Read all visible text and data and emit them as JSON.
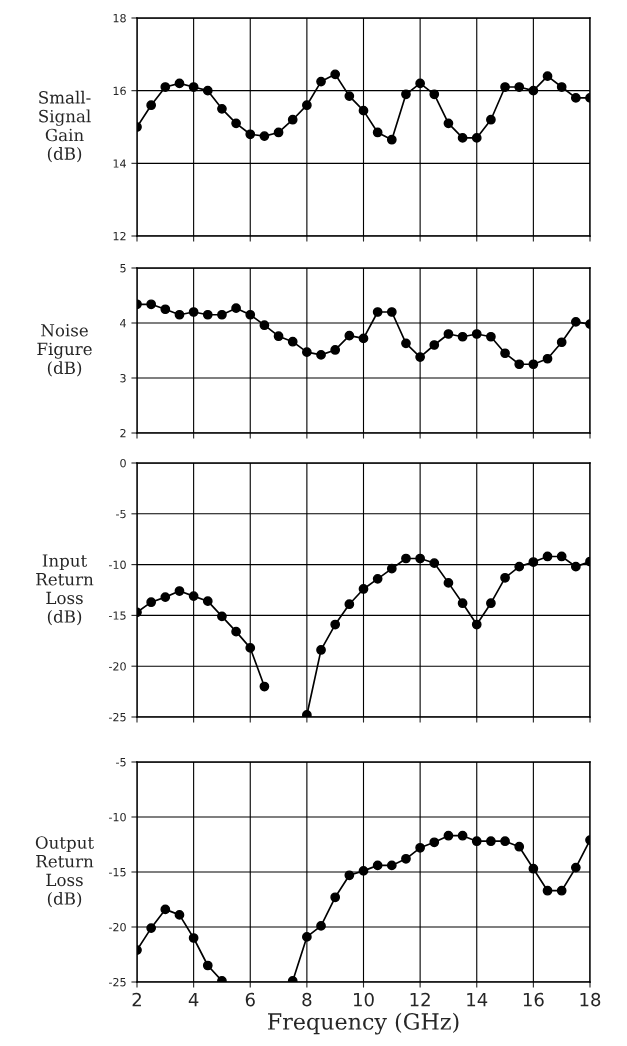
{
  "chart_data": [
    {
      "type": "line",
      "ylabel": "Small-\nSignal\nGain\n(dB)",
      "x": [
        2,
        2.5,
        3,
        3.5,
        4,
        4.5,
        5,
        5.5,
        6,
        6.5,
        7,
        7.5,
        8,
        8.5,
        9,
        9.5,
        10,
        10.5,
        11,
        11.5,
        12,
        12.5,
        13,
        13.5,
        14,
        14.5,
        15,
        15.5,
        16,
        16.5,
        17,
        17.5,
        18
      ],
      "series": [
        {
          "color": "#000000",
          "values": [
            15.0,
            15.6,
            16.1,
            16.2,
            16.1,
            16.0,
            15.5,
            15.1,
            14.8,
            14.75,
            14.85,
            15.2,
            15.6,
            16.25,
            16.45,
            15.85,
            15.45,
            14.85,
            14.65,
            15.9,
            16.2,
            15.9,
            15.1,
            14.7,
            14.7,
            15.2,
            16.1,
            16.1,
            16.0,
            16.4,
            16.1,
            15.8,
            15.8
          ]
        }
      ],
      "xlim": [
        2,
        18
      ],
      "xticks": [
        2,
        4,
        6,
        8,
        10,
        12,
        14,
        16,
        18
      ],
      "ylim": [
        12,
        18
      ],
      "yticks": [
        12,
        14,
        16,
        18
      ],
      "grid": true,
      "marker": "circle",
      "line_style": "solid",
      "tick_labels": "y"
    },
    {
      "type": "line",
      "ylabel": "Noise\nFigure\n(dB)",
      "x": [
        2,
        2.5,
        3,
        3.5,
        4,
        4.5,
        5,
        5.5,
        6,
        6.5,
        7,
        7.5,
        8,
        8.5,
        9,
        9.5,
        10,
        10.5,
        11,
        11.5,
        12,
        12.5,
        13,
        13.5,
        14,
        14.5,
        15,
        15.5,
        16,
        16.5,
        17,
        17.5,
        18
      ],
      "series": [
        {
          "color": "#000000",
          "values": [
            4.34,
            4.34,
            4.25,
            4.15,
            4.2,
            4.15,
            4.15,
            4.27,
            4.15,
            3.96,
            3.76,
            3.66,
            3.47,
            3.42,
            3.51,
            3.77,
            3.72,
            4.2,
            4.2,
            3.63,
            3.38,
            3.6,
            3.8,
            3.75,
            3.8,
            3.75,
            3.45,
            3.25,
            3.25,
            3.35,
            3.65,
            4.02,
            3.98
          ]
        }
      ],
      "xlim": [
        2,
        18
      ],
      "xticks": [
        2,
        4,
        6,
        8,
        10,
        12,
        14,
        16,
        18
      ],
      "ylim": [
        2,
        5
      ],
      "yticks": [
        2,
        3,
        4,
        5
      ],
      "grid": true,
      "marker": "circle",
      "line_style": "solid",
      "tick_labels": "y"
    },
    {
      "type": "line",
      "ylabel": "Input\nReturn\nLoss\n(dB)",
      "x": [
        2,
        2.5,
        3,
        3.5,
        4,
        4.5,
        5,
        5.5,
        6,
        6.5,
        7,
        7.5,
        8,
        8.5,
        9,
        9.5,
        10,
        10.5,
        11,
        11.5,
        12,
        12.5,
        13,
        13.5,
        14,
        14.5,
        15,
        15.5,
        16,
        16.5,
        17,
        17.5,
        18
      ],
      "series": [
        {
          "color": "#000000",
          "values": [
            -14.7,
            -13.7,
            -13.2,
            -12.6,
            -13.1,
            -13.6,
            -15.1,
            -16.6,
            -18.2,
            -22.0,
            null,
            null,
            -24.8,
            -18.4,
            -15.9,
            -13.9,
            -12.4,
            -11.4,
            -10.4,
            -9.4,
            -9.4,
            -9.85,
            -11.8,
            -13.8,
            -15.9,
            -13.8,
            -11.3,
            -10.2,
            -9.75,
            -9.2,
            -9.2,
            -10.2,
            -9.7
          ]
        }
      ],
      "xlim": [
        2,
        18
      ],
      "xticks": [
        2,
        4,
        6,
        8,
        10,
        12,
        14,
        16,
        18
      ],
      "ylim": [
        -25,
        0
      ],
      "yticks": [
        -25,
        -20,
        -15,
        -10,
        -5,
        0
      ],
      "grid": true,
      "marker": "circle",
      "line_style": "solid",
      "tick_labels": "y"
    },
    {
      "type": "line",
      "ylabel": "Output\nReturn\nLoss\n(dB)",
      "xlabel": "Frequency (GHz)",
      "x": [
        2,
        2.5,
        3,
        3.5,
        4,
        4.5,
        5,
        5.5,
        6,
        6.5,
        7,
        7.5,
        8,
        8.5,
        9,
        9.5,
        10,
        10.5,
        11,
        11.5,
        12,
        12.5,
        13,
        13.5,
        14,
        14.5,
        15,
        15.5,
        16,
        16.5,
        17,
        17.5,
        18
      ],
      "series": [
        {
          "color": "#000000",
          "values": [
            -22.1,
            -20.1,
            -18.4,
            -18.9,
            -21.0,
            -23.5,
            -24.9,
            null,
            null,
            null,
            null,
            -24.9,
            -20.9,
            -19.9,
            -17.3,
            -15.3,
            -14.9,
            -14.4,
            -14.4,
            -13.8,
            -12.8,
            -12.3,
            -11.7,
            -11.7,
            -12.2,
            -12.2,
            -12.2,
            -12.7,
            -14.7,
            -16.7,
            -16.7,
            -14.6,
            -12.1
          ]
        }
      ],
      "xlim": [
        2,
        18
      ],
      "xticks": [
        2,
        4,
        6,
        8,
        10,
        12,
        14,
        16,
        18
      ],
      "ylim": [
        -25,
        -5
      ],
      "yticks": [
        -25,
        -20,
        -15,
        -10,
        -5
      ],
      "grid": true,
      "marker": "circle",
      "line_style": "solid"
    }
  ]
}
